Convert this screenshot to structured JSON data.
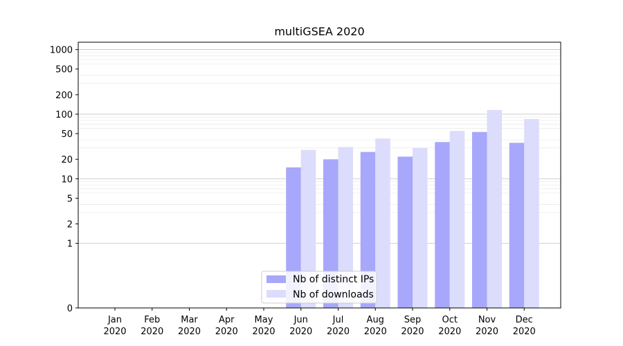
{
  "chart_data": {
    "type": "bar",
    "title": "multiGSEA 2020",
    "xlabel": "",
    "ylabel": "",
    "yscale": "symlog",
    "ylim": [
      0,
      1300
    ],
    "categories": [
      [
        "Jan",
        "2020"
      ],
      [
        "Feb",
        "2020"
      ],
      [
        "Mar",
        "2020"
      ],
      [
        "Apr",
        "2020"
      ],
      [
        "May",
        "2020"
      ],
      [
        "Jun",
        "2020"
      ],
      [
        "Jul",
        "2020"
      ],
      [
        "Aug",
        "2020"
      ],
      [
        "Sep",
        "2020"
      ],
      [
        "Oct",
        "2020"
      ],
      [
        "Nov",
        "2020"
      ],
      [
        "Dec",
        "2020"
      ]
    ],
    "yticks": [
      0,
      1,
      2,
      5,
      10,
      20,
      50,
      100,
      200,
      500,
      1000
    ],
    "ytick_labels": [
      "0",
      "1",
      "2",
      "5",
      "10",
      "20",
      "50",
      "100",
      "200",
      "500",
      "1000"
    ],
    "series": [
      {
        "name": "Nb of distinct IPs",
        "color": "#a7a7fb",
        "values": [
          0,
          0,
          0,
          0,
          0,
          15,
          20,
          26,
          22,
          37,
          53,
          36
        ]
      },
      {
        "name": "Nb of downloads",
        "color": "#dcdcfc",
        "values": [
          0,
          0,
          0,
          0,
          0,
          28,
          31,
          42,
          30,
          55,
          116,
          84
        ]
      }
    ],
    "legend_position": "lower-center",
    "grid": true
  }
}
